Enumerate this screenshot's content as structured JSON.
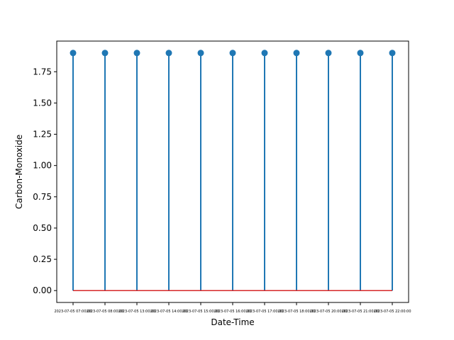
{
  "chart_data": {
    "type": "stem",
    "title": "",
    "xlabel": "Date-Time",
    "ylabel": "Carbon-Monoxide",
    "x": [
      "2023-07-05 07:00:00",
      "2023-07-05 08:00:00",
      "2023-07-05 13:00:00",
      "2023-07-05 14:00:00",
      "2023-07-05 15:00:00",
      "2023-07-05 16:00:00",
      "2023-07-05 17:00:00",
      "2023-07-05 18:00:00",
      "2023-07-05 20:00:00",
      "2023-07-05 21:00:00",
      "2023-07-05 22:00:00"
    ],
    "values": [
      1.9,
      1.9,
      1.9,
      1.9,
      1.9,
      1.9,
      1.9,
      1.9,
      1.9,
      1.9,
      1.9
    ],
    "baseline": 0,
    "ylim": [
      -0.095,
      1.995
    ],
    "yticks": [
      "0.00",
      "0.25",
      "0.50",
      "0.75",
      "1.00",
      "1.25",
      "1.50",
      "1.75"
    ],
    "grid": false,
    "colors": {
      "stem": "#1f77b4",
      "marker": "#1f77b4",
      "baseline": "#d62728"
    }
  }
}
